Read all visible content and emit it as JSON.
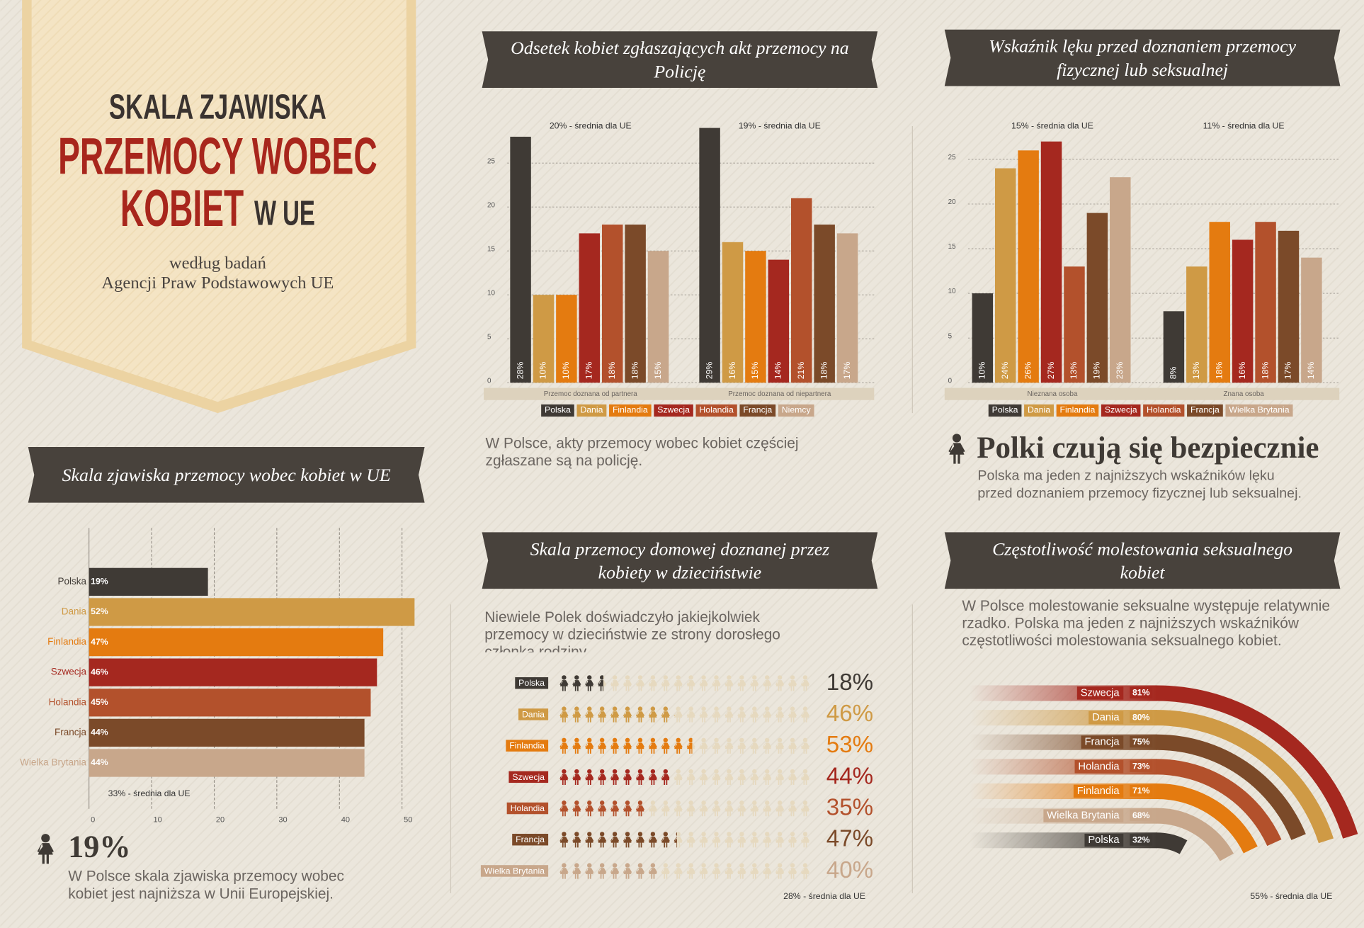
{
  "header": {
    "title_line1": "SKALA ZJAWISKA",
    "title_line2": "PRZEMOCY WOBEC",
    "title_line3": "KOBIET",
    "title_line3_suffix": "W UE",
    "source_line1": "według badań",
    "source_line2": "Agencji Praw Podstawowych UE"
  },
  "chart_data": [
    {
      "type": "hbar",
      "title": "Skala zjawiska przemocy wobec kobiet w UE",
      "categories": [
        "Polska",
        "Dania",
        "Finlandia",
        "Szwecja",
        "Holandia",
        "Francja",
        "Wielka Brytania"
      ],
      "values": [
        19,
        52,
        47,
        46,
        45,
        44,
        44
      ],
      "value_labels": [
        "19%",
        "52%",
        "47%",
        "46%",
        "45%",
        "44%",
        "44%"
      ],
      "colors": [
        "#3f3a35",
        "#cf9a45",
        "#e47b10",
        "#a5281f",
        "#b3512c",
        "#7b4a29",
        "#c8a78b"
      ],
      "xlim": [
        0,
        53
      ],
      "xticks": [
        0,
        10,
        20,
        30,
        40,
        50
      ],
      "grid": true,
      "annotation": "33% - średnia dla UE",
      "highlight": "19%",
      "note": "W Polsce skala zjawiska przemocy wobec kobiet jest najniższa w Unii Europejskiej."
    },
    {
      "type": "grouped-bar",
      "title": "Odsetek kobiet zgłaszających akt przemocy na Policję",
      "categories": [
        "Przemoc doznana od partnera",
        "Przemoc doznana od niepartnera"
      ],
      "series": [
        {
          "name": "Polska",
          "color": "#3f3a35",
          "values": [
            28,
            29
          ],
          "value_labels": [
            "28%",
            "29%"
          ]
        },
        {
          "name": "Dania",
          "color": "#cf9a45",
          "values": [
            10,
            16
          ],
          "value_labels": [
            "10%",
            "16%"
          ]
        },
        {
          "name": "Finlandia",
          "color": "#e47b10",
          "values": [
            10,
            15
          ],
          "value_labels": [
            "10%",
            "15%"
          ]
        },
        {
          "name": "Szwecja",
          "color": "#a5281f",
          "values": [
            17,
            14
          ],
          "value_labels": [
            "17%",
            "14%"
          ]
        },
        {
          "name": "Holandia",
          "color": "#b3512c",
          "values": [
            18,
            21
          ],
          "value_labels": [
            "18%",
            "21%"
          ]
        },
        {
          "name": "Francja",
          "color": "#7b4a29",
          "values": [
            18,
            18
          ],
          "value_labels": [
            "18%",
            "18%"
          ]
        },
        {
          "name": "Niemcy",
          "color": "#c8a78b",
          "values": [
            15,
            17
          ],
          "value_labels": [
            "15%",
            "17%"
          ]
        }
      ],
      "ylim": [
        0,
        30
      ],
      "yticks": [
        0,
        5,
        10,
        15,
        20,
        25
      ],
      "grid": true,
      "annotations": [
        "20% - średnia dla UE",
        "19% - średnia dla UE"
      ],
      "note": "W Polsce, akty przemocy wobec kobiet częściej zgłaszane są na policję."
    },
    {
      "type": "grouped-bar",
      "title": "Wskaźnik lęku przed doznaniem przemocy fizycznej lub seksualnej",
      "categories": [
        "Nieznana osoba",
        "Znana osoba"
      ],
      "series": [
        {
          "name": "Polska",
          "color": "#3f3a35",
          "values": [
            10,
            8
          ],
          "value_labels": [
            "10%",
            "8%"
          ]
        },
        {
          "name": "Dania",
          "color": "#cf9a45",
          "values": [
            24,
            13
          ],
          "value_labels": [
            "24%",
            "13%"
          ]
        },
        {
          "name": "Finlandia",
          "color": "#e47b10",
          "values": [
            26,
            18
          ],
          "value_labels": [
            "26%",
            "18%"
          ]
        },
        {
          "name": "Szwecja",
          "color": "#a5281f",
          "values": [
            27,
            16
          ],
          "value_labels": [
            "27%",
            "16%"
          ]
        },
        {
          "name": "Holandia",
          "color": "#b3512c",
          "values": [
            13,
            18
          ],
          "value_labels": [
            "13%",
            "18%"
          ]
        },
        {
          "name": "Francja",
          "color": "#7b4a29",
          "values": [
            19,
            17
          ],
          "value_labels": [
            "19%",
            "17%"
          ]
        },
        {
          "name": "Wielka Brytania",
          "color": "#c8a78b",
          "values": [
            23,
            14
          ],
          "value_labels": [
            "23%",
            "14%"
          ]
        }
      ],
      "ylim": [
        0,
        29.5
      ],
      "yticks": [
        0,
        5,
        10,
        15,
        20,
        25
      ],
      "grid": true,
      "annotations": [
        "15% - średnia dla UE",
        "11% - średnia dla UE"
      ],
      "highlight": "Polki czują się bezpiecznie",
      "note": "Polska ma jeden z najniższych wskaźników lęku przed doznaniem przemocy fizycznej lub seksualnej."
    },
    {
      "type": "pictogram",
      "title": "Skala przemocy domowej doznanej przez kobiety w dzieciństwie",
      "note": "Niewiele Polek doświadczyło jakiejkolwiek przemocy w dzieciństwie ze strony dorosłego członka rodziny.",
      "categories": [
        "Polska",
        "Dania",
        "Finlandia",
        "Szwecja",
        "Holandia",
        "Francja",
        "Wielka Brytania"
      ],
      "values": [
        18,
        46,
        53,
        44,
        35,
        47,
        40
      ],
      "value_labels": [
        "18%",
        "46%",
        "53%",
        "44%",
        "35%",
        "47%",
        "40%"
      ],
      "colors": [
        "#3f3a35",
        "#cf9a45",
        "#e47b10",
        "#a5281f",
        "#b3512c",
        "#7b4a29",
        "#c8a78b"
      ],
      "xlim": [
        0,
        100
      ],
      "annotation": "28% - średnia dla UE"
    },
    {
      "type": "radial-bar",
      "title": "Częstotliwość molestowania seksualnego kobiet",
      "note": "W Polsce molestowanie seksualne występuje relatywnie rzadko. Polska ma jeden z najniższych wskaźników częstotliwości molestowania seksualnego kobiet.",
      "categories": [
        "Szwecja",
        "Dania",
        "Francja",
        "Holandia",
        "Finlandia",
        "Wielka Brytania",
        "Polska"
      ],
      "values": [
        81,
        80,
        75,
        73,
        71,
        68,
        32
      ],
      "value_labels": [
        "81%",
        "80%",
        "75%",
        "73%",
        "71%",
        "68%",
        "32%"
      ],
      "colors": [
        "#a5281f",
        "#cf9a45",
        "#7b4a29",
        "#b3512c",
        "#e47b10",
        "#c8a78b",
        "#3f3a35"
      ],
      "xlim": [
        0,
        100
      ],
      "annotation": "55% - średnia dla UE"
    }
  ]
}
